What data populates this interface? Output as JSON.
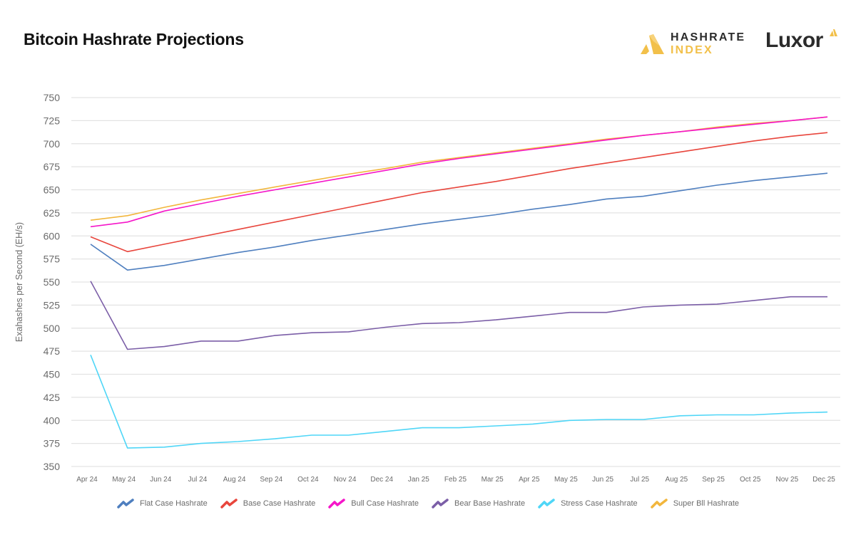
{
  "header": {
    "title": "Bitcoin Hashrate Projections",
    "logo_hashrate_line1": "HASHRATE",
    "logo_hashrate_line2": "INDEX",
    "logo_luxor": "Luxor",
    "brand_color": "#f2c04a"
  },
  "chart_data": {
    "type": "line",
    "title": "Bitcoin Hashrate Projections",
    "xlabel": "",
    "ylabel": "Exahashes per Second (EH/s)",
    "ylim": [
      350,
      750
    ],
    "yticks": [
      350,
      375,
      400,
      425,
      450,
      475,
      500,
      525,
      550,
      575,
      600,
      625,
      650,
      675,
      700,
      725,
      750
    ],
    "grid": true,
    "legend_position": "bottom",
    "categories": [
      "Apr 24",
      "May 24",
      "Jun 24",
      "Jul 24",
      "Aug 24",
      "Sep 24",
      "Oct 24",
      "Nov 24",
      "Dec 24",
      "Jan 25",
      "Feb 25",
      "Mar 25",
      "Apr 25",
      "May 25",
      "Jun 25",
      "Jul 25",
      "Aug 25",
      "Sep 25",
      "Oct 25",
      "Nov 25",
      "Dec 25"
    ],
    "series": [
      {
        "name": "Flat Case Hashrate",
        "color": "#4f7fbf",
        "values": [
          591,
          563,
          568,
          575,
          582,
          588,
          595,
          601,
          607,
          613,
          618,
          623,
          629,
          634,
          640,
          643,
          649,
          655,
          660,
          664,
          668
        ]
      },
      {
        "name": "Base Case Hashrate",
        "color": "#e8453c",
        "values": [
          599,
          583,
          591,
          599,
          607,
          615,
          623,
          631,
          639,
          647,
          653,
          659,
          666,
          673,
          679,
          685,
          691,
          697,
          703,
          708,
          712
        ]
      },
      {
        "name": "Bull Case Hashrate",
        "color": "#f516c9",
        "values": [
          610,
          615,
          627,
          635,
          643,
          650,
          657,
          664,
          671,
          678,
          684,
          689,
          694,
          699,
          704,
          709,
          713,
          717,
          721,
          725,
          729
        ]
      },
      {
        "name": "Bear Base Hashrate",
        "color": "#7b5ea7",
        "values": [
          551,
          477,
          480,
          486,
          486,
          492,
          495,
          496,
          501,
          505,
          506,
          509,
          513,
          517,
          517,
          523,
          525,
          526,
          530,
          534,
          534
        ]
      },
      {
        "name": "Stress Case Hashrate",
        "color": "#4fd6f7",
        "values": [
          471,
          370,
          371,
          375,
          377,
          380,
          384,
          384,
          388,
          392,
          392,
          394,
          396,
          400,
          401,
          401,
          405,
          406,
          406,
          408,
          409
        ]
      },
      {
        "name": "Super Bll Hashrate",
        "color": "#f2b63c",
        "values": [
          617,
          622,
          631,
          639,
          646,
          653,
          660,
          667,
          673,
          680,
          685,
          690,
          695,
          700,
          705,
          709,
          713,
          718,
          722,
          725,
          729
        ]
      }
    ]
  }
}
